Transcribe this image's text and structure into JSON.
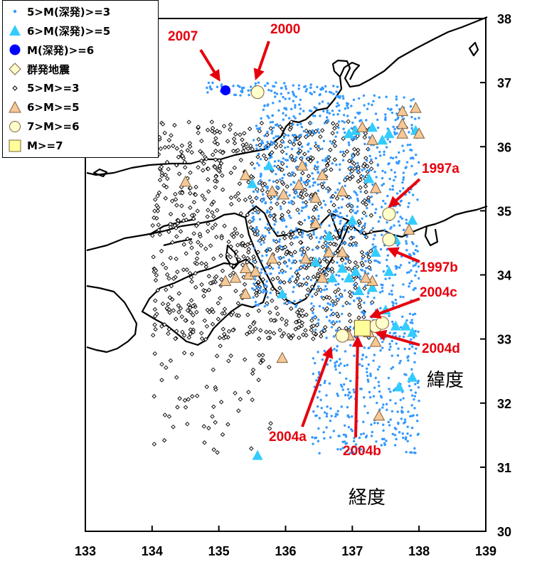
{
  "legend": {
    "items": [
      {
        "label": "5>M(深発)>=3",
        "symbol": "small-dot",
        "color": "#3399ff"
      },
      {
        "label": "6>M(深発)>=5",
        "symbol": "triangle",
        "color": "#33ccff"
      },
      {
        "label": "M(深発)>=6",
        "symbol": "circle",
        "color": "#0000ff"
      },
      {
        "label": "群発地震",
        "symbol": "diamond",
        "color": "#ffffcc"
      },
      {
        "label": "5>M>=3",
        "symbol": "small-diamond",
        "color": "#ffffff"
      },
      {
        "label": "6>M>=5",
        "symbol": "triangle",
        "color": "#f5c896"
      },
      {
        "label": "7>M>=6",
        "symbol": "circle",
        "color": "#ffffcc"
      },
      {
        "label": "M>=7",
        "symbol": "square",
        "color": "#ffff99"
      }
    ]
  },
  "axes": {
    "xlabel": "経度",
    "ylabel": "緯度",
    "xlim": [
      133,
      139
    ],
    "ylim": [
      30,
      38
    ],
    "xticks": [
      "133",
      "134",
      "135",
      "136",
      "137",
      "138",
      "139"
    ],
    "yticks": [
      "30",
      "31",
      "32",
      "33",
      "34",
      "35",
      "36",
      "37",
      "38"
    ]
  },
  "annotations": [
    {
      "label": "2007",
      "lon": 135.1,
      "lat": 36.88
    },
    {
      "label": "2000",
      "lon": 135.58,
      "lat": 36.85
    },
    {
      "label": "1997a",
      "lon": 137.55,
      "lat": 34.95
    },
    {
      "label": "1997b",
      "lon": 137.55,
      "lat": 34.55
    },
    {
      "label": "2004c",
      "lon": 137.35,
      "lat": 33.35
    },
    {
      "label": "2004d",
      "lon": 137.45,
      "lat": 33.05
    },
    {
      "label": "2004a",
      "lon": 136.8,
      "lat": 33.0
    },
    {
      "label": "2004b",
      "lon": 137.15,
      "lat": 33.0
    }
  ],
  "colors": {
    "deep_small": "#3399ff",
    "deep_mid": "#33ccff",
    "deep_large": "#0000ff",
    "swarm": "#ffffcc",
    "shallow_mid": "#f5c896",
    "shallow_large": "#ffffcc",
    "m7": "#ffff99",
    "annotation": "#e6000d"
  },
  "chart_data": {
    "type": "scatter",
    "xlabel": "経度",
    "ylabel": "緯度",
    "xlim": [
      133,
      139
    ],
    "ylim": [
      30,
      38
    ],
    "series": [
      {
        "name": "M(深発)>=6",
        "symbol": "circle",
        "color": "#0000ff",
        "points": [
          [
            135.1,
            36.88
          ]
        ]
      },
      {
        "name": "6>M(深発)>=5",
        "symbol": "triangle",
        "color": "#33ccff",
        "points": [
          [
            135.75,
            35.7
          ],
          [
            135.5,
            35.42
          ],
          [
            136.95,
            36.2
          ],
          [
            137.05,
            36.25
          ],
          [
            137.45,
            36.1
          ],
          [
            137.65,
            34.55
          ],
          [
            137.55,
            34.05
          ],
          [
            137.35,
            34.35
          ],
          [
            136.95,
            33.95
          ],
          [
            137.1,
            33.75
          ],
          [
            137.3,
            33.8
          ],
          [
            137.05,
            34.05
          ],
          [
            137.5,
            33.45
          ],
          [
            137.8,
            33.2
          ],
          [
            137.9,
            33.1
          ],
          [
            137.65,
            33.2
          ],
          [
            137.9,
            32.4
          ],
          [
            137.7,
            32.25
          ],
          [
            136.65,
            34.6
          ],
          [
            136.85,
            34.1
          ],
          [
            136.45,
            34.2
          ],
          [
            135.95,
            33.7
          ],
          [
            137.25,
            35.5
          ],
          [
            137.3,
            36.3
          ],
          [
            137.55,
            36.2
          ],
          [
            135.58,
            31.18
          ],
          [
            137.9,
            34.85
          ],
          [
            137.95,
            36.25
          ],
          [
            137.0,
            34.85
          ],
          [
            136.7,
            33.95
          ]
        ]
      },
      {
        "name": "6>M>=5",
        "symbol": "triangle",
        "color": "#f5c896",
        "points": [
          [
            134.5,
            35.45
          ],
          [
            135.4,
            35.55
          ],
          [
            135.8,
            35.3
          ],
          [
            135.97,
            35.25
          ],
          [
            136.25,
            35.7
          ],
          [
            136.55,
            35.55
          ],
          [
            136.45,
            35.2
          ],
          [
            136.85,
            35.3
          ],
          [
            137.35,
            35.35
          ],
          [
            137.75,
            36.55
          ],
          [
            137.95,
            36.6
          ],
          [
            137.75,
            36.35
          ],
          [
            137.75,
            36.2
          ],
          [
            138.0,
            36.2
          ],
          [
            137.3,
            36.1
          ],
          [
            137.15,
            36.3
          ],
          [
            135.45,
            34.0
          ],
          [
            135.55,
            34.05
          ],
          [
            135.8,
            34.25
          ],
          [
            135.25,
            33.95
          ],
          [
            135.4,
            33.7
          ],
          [
            136.3,
            34.25
          ],
          [
            136.55,
            33.95
          ],
          [
            136.65,
            34.35
          ],
          [
            136.85,
            34.35
          ],
          [
            137.3,
            33.9
          ],
          [
            136.95,
            33.05
          ],
          [
            137.35,
            32.95
          ],
          [
            137.25,
            33.1
          ],
          [
            135.95,
            32.7
          ],
          [
            137.4,
            31.8
          ],
          [
            136.45,
            34.8
          ],
          [
            137.2,
            33.95
          ],
          [
            135.4,
            34.1
          ],
          [
            137.85,
            34.7
          ],
          [
            135.1,
            33.9
          ],
          [
            136.2,
            35.4
          ]
        ]
      },
      {
        "name": "7>M>=6",
        "symbol": "circle",
        "color": "#ffffcc",
        "points": [
          [
            135.58,
            36.85
          ],
          [
            137.55,
            34.95
          ],
          [
            137.55,
            34.55
          ],
          [
            136.85,
            33.05
          ],
          [
            137.35,
            33.2
          ],
          [
            137.45,
            33.25
          ]
        ]
      },
      {
        "name": "M>=7",
        "symbol": "square",
        "color": "#ffff99",
        "points": [
          [
            137.15,
            33.17
          ]
        ]
      },
      {
        "name": "5>M(深発)>=3",
        "symbol": "small-dot",
        "color": "#3399ff",
        "points": []
      },
      {
        "name": "5>M>=3",
        "symbol": "small-diamond",
        "color": "#ffffff",
        "points": []
      },
      {
        "name": "群発地震",
        "symbol": "diamond",
        "color": "#ffffcc",
        "points": []
      }
    ]
  }
}
